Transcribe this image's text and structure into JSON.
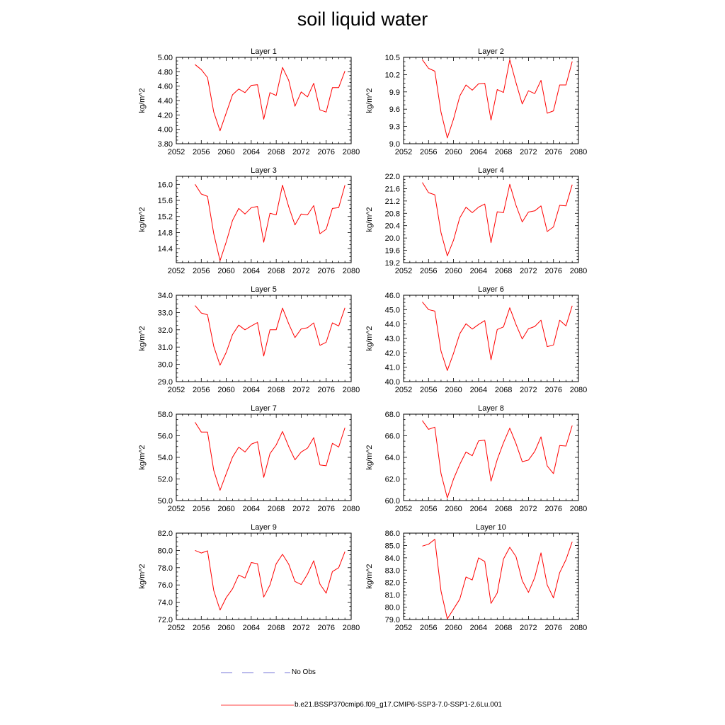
{
  "title": "soil liquid water",
  "colors": {
    "model": "#ff0000",
    "obs": "#4b4bcc",
    "axis": "#000000"
  },
  "legend": {
    "obs_label": "No Obs",
    "model_label": "b.e21.BSSP370cmip6.f09_g17.CMIP6-SSP3-7.0-SSP1-2.6Lu.001"
  },
  "chart_data": [
    {
      "type": "line",
      "title": "Layer 1",
      "ylabel": "kg/m^2",
      "xlim": [
        2052,
        2080
      ],
      "xticks": [
        "2052",
        "2056",
        "2060",
        "2064",
        "2068",
        "2072",
        "2076",
        "2080"
      ],
      "ylim": [
        3.8,
        5.0
      ],
      "yticks": [
        "3.80",
        "4.00",
        "4.20",
        "4.40",
        "4.60",
        "4.80",
        "5.00"
      ],
      "series": [
        {
          "x": [
            2055,
            2056,
            2057,
            2058,
            2059,
            2060,
            2061,
            2062,
            2063,
            2064,
            2065,
            2066,
            2067,
            2068,
            2069,
            2070,
            2071,
            2072,
            2073,
            2074,
            2075,
            2076,
            2077,
            2078,
            2079
          ],
          "values": [
            4.9,
            4.83,
            4.72,
            4.24,
            3.98,
            4.23,
            4.48,
            4.56,
            4.51,
            4.61,
            4.62,
            4.14,
            4.51,
            4.47,
            4.86,
            4.68,
            4.32,
            4.52,
            4.45,
            4.64,
            4.27,
            4.24,
            4.58,
            4.58,
            4.81
          ]
        }
      ]
    },
    {
      "type": "line",
      "title": "Layer 2",
      "ylabel": "kg/m^2",
      "xlim": [
        2052,
        2080
      ],
      "xticks": [
        "2052",
        "2056",
        "2060",
        "2064",
        "2068",
        "2072",
        "2076",
        "2080"
      ],
      "ylim": [
        9.0,
        10.5
      ],
      "yticks": [
        "9.0",
        "9.3",
        "9.6",
        "9.9",
        "10.2",
        "10.5"
      ],
      "series": [
        {
          "x": [
            2055,
            2056,
            2057,
            2058,
            2059,
            2060,
            2061,
            2062,
            2063,
            2064,
            2065,
            2066,
            2067,
            2068,
            2069,
            2070,
            2071,
            2072,
            2073,
            2074,
            2075,
            2076,
            2077,
            2078,
            2079
          ],
          "values": [
            10.46,
            10.31,
            10.26,
            9.55,
            9.1,
            9.43,
            9.83,
            10.02,
            9.93,
            10.04,
            10.05,
            9.41,
            9.94,
            9.89,
            10.46,
            10.06,
            9.69,
            9.92,
            9.87,
            10.1,
            9.53,
            9.57,
            10.02,
            10.02,
            10.43
          ]
        }
      ]
    },
    {
      "type": "line",
      "title": "Layer 3",
      "ylabel": "kg/m^2",
      "xlim": [
        2052,
        2080
      ],
      "xticks": [
        "2052",
        "2056",
        "2060",
        "2064",
        "2068",
        "2072",
        "2076",
        "2080"
      ],
      "ylim": [
        14.05,
        16.2
      ],
      "yticks": [
        "14.4",
        "14.8",
        "15.2",
        "15.6",
        "16.0"
      ],
      "series": [
        {
          "x": [
            2055,
            2056,
            2057,
            2058,
            2059,
            2060,
            2061,
            2062,
            2063,
            2064,
            2065,
            2066,
            2067,
            2068,
            2069,
            2070,
            2071,
            2072,
            2073,
            2074,
            2075,
            2076,
            2077,
            2078,
            2079
          ],
          "values": [
            16.0,
            15.76,
            15.7,
            14.77,
            14.1,
            14.57,
            15.1,
            15.4,
            15.26,
            15.42,
            15.45,
            14.56,
            15.28,
            15.24,
            15.98,
            15.44,
            14.99,
            15.26,
            15.24,
            15.47,
            14.77,
            14.88,
            15.4,
            15.42,
            15.98
          ]
        }
      ]
    },
    {
      "type": "line",
      "title": "Layer 4",
      "ylabel": "kg/m^2",
      "xlim": [
        2052,
        2080
      ],
      "xticks": [
        "2052",
        "2056",
        "2060",
        "2064",
        "2068",
        "2072",
        "2076",
        "2080"
      ],
      "ylim": [
        19.2,
        22.0
      ],
      "yticks": [
        "19.2",
        "19.6",
        "20.0",
        "20.4",
        "20.8",
        "21.2",
        "21.6",
        "22.0"
      ],
      "series": [
        {
          "x": [
            2055,
            2056,
            2057,
            2058,
            2059,
            2060,
            2061,
            2062,
            2063,
            2064,
            2065,
            2066,
            2067,
            2068,
            2069,
            2070,
            2071,
            2072,
            2073,
            2074,
            2075,
            2076,
            2077,
            2078,
            2079
          ],
          "values": [
            21.8,
            21.47,
            21.4,
            20.17,
            19.42,
            19.93,
            20.65,
            21.0,
            20.82,
            21.0,
            21.1,
            19.85,
            20.85,
            20.82,
            21.74,
            21.06,
            20.52,
            20.84,
            20.88,
            21.04,
            20.21,
            20.36,
            21.06,
            21.04,
            21.73
          ]
        }
      ]
    },
    {
      "type": "line",
      "title": "Layer 5",
      "ylabel": "kg/m^2",
      "xlim": [
        2052,
        2080
      ],
      "xticks": [
        "2052",
        "2056",
        "2060",
        "2064",
        "2068",
        "2072",
        "2076",
        "2080"
      ],
      "ylim": [
        29.0,
        34.0
      ],
      "yticks": [
        "29.0",
        "30.0",
        "31.0",
        "32.0",
        "33.0",
        "34.0"
      ],
      "series": [
        {
          "x": [
            2055,
            2056,
            2057,
            2058,
            2059,
            2060,
            2061,
            2062,
            2063,
            2064,
            2065,
            2066,
            2067,
            2068,
            2069,
            2070,
            2071,
            2072,
            2073,
            2074,
            2075,
            2076,
            2077,
            2078,
            2079
          ],
          "values": [
            33.4,
            32.97,
            32.87,
            31.04,
            29.95,
            30.7,
            31.72,
            32.27,
            32.0,
            32.22,
            32.42,
            30.48,
            32.0,
            32.0,
            33.26,
            32.35,
            31.55,
            32.05,
            32.12,
            32.4,
            31.1,
            31.28,
            32.4,
            32.22,
            33.27
          ]
        }
      ]
    },
    {
      "type": "line",
      "title": "Layer 6",
      "ylabel": "kg/m^2",
      "xlim": [
        2052,
        2080
      ],
      "xticks": [
        "2052",
        "2056",
        "2060",
        "2064",
        "2068",
        "2072",
        "2076",
        "2080"
      ],
      "ylim": [
        40.0,
        46.0
      ],
      "yticks": [
        "40.0",
        "41.0",
        "42.0",
        "43.0",
        "44.0",
        "45.0",
        "46.0"
      ],
      "series": [
        {
          "x": [
            2055,
            2056,
            2057,
            2058,
            2059,
            2060,
            2061,
            2062,
            2063,
            2064,
            2065,
            2066,
            2067,
            2068,
            2069,
            2070,
            2071,
            2072,
            2073,
            2074,
            2075,
            2076,
            2077,
            2078,
            2079
          ],
          "values": [
            45.53,
            45.0,
            44.9,
            42.12,
            40.77,
            41.97,
            43.33,
            44.02,
            43.65,
            43.97,
            44.24,
            41.52,
            43.62,
            43.8,
            45.13,
            43.97,
            42.96,
            43.67,
            43.83,
            44.27,
            42.43,
            42.55,
            44.27,
            43.87,
            45.27
          ]
        }
      ]
    },
    {
      "type": "line",
      "title": "Layer 7",
      "ylabel": "kg/m^2",
      "xlim": [
        2052,
        2080
      ],
      "xticks": [
        "2052",
        "2056",
        "2060",
        "2064",
        "2068",
        "2072",
        "2076",
        "2080"
      ],
      "ylim": [
        50.0,
        58.0
      ],
      "yticks": [
        "50.0",
        "52.0",
        "54.0",
        "56.0",
        "58.0"
      ],
      "series": [
        {
          "x": [
            2055,
            2056,
            2057,
            2058,
            2059,
            2060,
            2061,
            2062,
            2063,
            2064,
            2065,
            2066,
            2067,
            2068,
            2069,
            2070,
            2071,
            2072,
            2073,
            2074,
            2075,
            2076,
            2077,
            2078,
            2079
          ],
          "values": [
            57.25,
            56.35,
            56.35,
            52.8,
            50.95,
            52.5,
            54.02,
            54.95,
            54.5,
            55.22,
            55.45,
            52.15,
            54.35,
            55.15,
            56.4,
            55.0,
            53.78,
            54.5,
            54.85,
            55.83,
            53.3,
            53.22,
            55.3,
            54.95,
            56.75
          ]
        }
      ]
    },
    {
      "type": "line",
      "title": "Layer 8",
      "ylabel": "kg/m^2",
      "xlim": [
        2052,
        2080
      ],
      "xticks": [
        "2052",
        "2056",
        "2060",
        "2064",
        "2068",
        "2072",
        "2076",
        "2080"
      ],
      "ylim": [
        60.0,
        68.0
      ],
      "yticks": [
        "60.0",
        "62.0",
        "64.0",
        "66.0",
        "68.0"
      ],
      "series": [
        {
          "x": [
            2055,
            2056,
            2057,
            2058,
            2059,
            2060,
            2061,
            2062,
            2063,
            2064,
            2065,
            2066,
            2067,
            2068,
            2069,
            2070,
            2071,
            2072,
            2073,
            2074,
            2075,
            2076,
            2077,
            2078,
            2079
          ],
          "values": [
            67.4,
            66.6,
            66.8,
            62.5,
            60.25,
            62.0,
            63.35,
            64.5,
            64.15,
            65.52,
            65.6,
            61.8,
            63.8,
            65.35,
            66.7,
            65.28,
            63.6,
            63.75,
            64.55,
            65.9,
            63.2,
            62.5,
            65.1,
            65.05,
            66.95
          ]
        }
      ]
    },
    {
      "type": "line",
      "title": "Layer 9",
      "ylabel": "kg/m^2",
      "xlim": [
        2052,
        2080
      ],
      "xticks": [
        "2052",
        "2056",
        "2060",
        "2064",
        "2068",
        "2072",
        "2076",
        "2080"
      ],
      "ylim": [
        72.0,
        82.0
      ],
      "yticks": [
        "72.0",
        "74.0",
        "76.0",
        "78.0",
        "80.0",
        "82.0"
      ],
      "series": [
        {
          "x": [
            2055,
            2056,
            2057,
            2058,
            2059,
            2060,
            2061,
            2062,
            2063,
            2064,
            2065,
            2066,
            2067,
            2068,
            2069,
            2070,
            2071,
            2072,
            2073,
            2074,
            2075,
            2076,
            2077,
            2078,
            2079
          ],
          "values": [
            80.0,
            79.7,
            79.95,
            75.35,
            73.1,
            74.55,
            75.55,
            77.15,
            76.8,
            78.6,
            78.45,
            74.6,
            76.0,
            78.45,
            79.55,
            78.4,
            76.4,
            76.05,
            77.25,
            78.8,
            76.1,
            75.05,
            77.55,
            78.0,
            79.85
          ]
        }
      ]
    },
    {
      "type": "line",
      "title": "Layer 10",
      "ylabel": "kg/m^2",
      "xlim": [
        2052,
        2080
      ],
      "xticks": [
        "2052",
        "2056",
        "2060",
        "2064",
        "2068",
        "2072",
        "2076",
        "2080"
      ],
      "ylim": [
        79.0,
        86.0
      ],
      "yticks": [
        "79.0",
        "80.0",
        "81.0",
        "82.0",
        "83.0",
        "84.0",
        "85.0",
        "86.0"
      ],
      "series": [
        {
          "x": [
            2055,
            2056,
            2057,
            2058,
            2059,
            2060,
            2061,
            2062,
            2063,
            2064,
            2065,
            2066,
            2067,
            2068,
            2069,
            2070,
            2071,
            2072,
            2073,
            2074,
            2075,
            2076,
            2077,
            2078,
            2079
          ],
          "values": [
            84.95,
            85.1,
            85.5,
            81.3,
            79.05,
            79.85,
            80.65,
            82.45,
            82.2,
            84.0,
            83.7,
            80.3,
            81.15,
            83.9,
            84.85,
            84.1,
            82.15,
            81.2,
            82.4,
            84.4,
            81.8,
            80.75,
            82.8,
            83.85,
            85.3
          ]
        }
      ]
    }
  ]
}
